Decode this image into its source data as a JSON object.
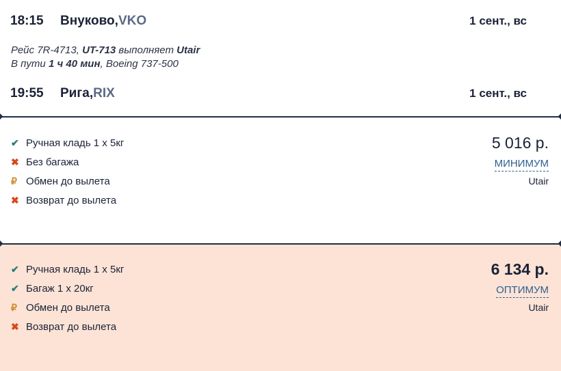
{
  "departure": {
    "time": "18:15",
    "city": "Внуково, ",
    "code": "VKO",
    "date": "1 сент., вс"
  },
  "flight_info": {
    "line1": [
      {
        "t": "Рейс 7R-4713, ",
        "b": false
      },
      {
        "t": "UT-713",
        "b": true
      },
      {
        "t": " выполняет ",
        "b": false
      },
      {
        "t": "Utair",
        "b": true
      }
    ],
    "line2": [
      {
        "t": "В пути ",
        "b": false
      },
      {
        "t": "1 ч 40 мин",
        "b": true
      },
      {
        "t": ", Boeing 737-500",
        "b": false
      }
    ]
  },
  "arrival": {
    "time": "19:55",
    "city": "Рига, ",
    "code": "RIX",
    "date": "1 сент., вс"
  },
  "fares": [
    {
      "price": "5 016 р.",
      "tariff": "МИНИМУМ",
      "airline": "Utair",
      "features": [
        {
          "icon": "check-icon",
          "text": "Ручная кладь 1 x 5кг"
        },
        {
          "icon": "cross-icon",
          "text": "Без багажа"
        },
        {
          "icon": "ruble-icon",
          "text": "Обмен до вылета"
        },
        {
          "icon": "cross-icon",
          "text": "Возврат до вылета"
        }
      ]
    },
    {
      "price": "6 134 р.",
      "tariff": "ОПТИМУМ",
      "airline": "Utair",
      "features": [
        {
          "icon": "check-icon",
          "text": "Ручная кладь 1 x 5кг"
        },
        {
          "icon": "check-icon",
          "text": "Багаж 1 x 20кг"
        },
        {
          "icon": "ruble-icon",
          "text": "Обмен до вылета"
        },
        {
          "icon": "cross-icon",
          "text": "Возврат до вылета"
        }
      ]
    }
  ],
  "colors": {
    "text": "#1a2236",
    "code": "#5a6a85",
    "link": "#2d5f8f",
    "highlight_bg": "#fce3d6",
    "check": "#2a7b78",
    "cross": "#d9491a",
    "fee": "#d08a2c"
  }
}
